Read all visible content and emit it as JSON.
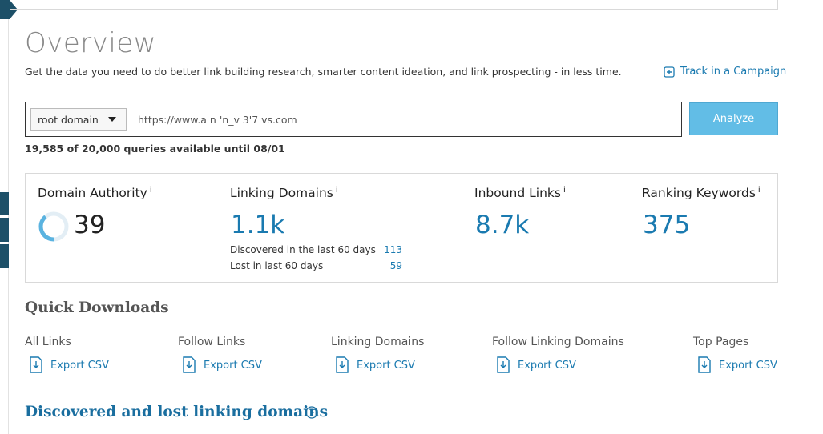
{
  "overview": {
    "title": "Overview",
    "description": "Get the data you need to do better link building research, smarter content ideation, and link prospecting - in less time.",
    "track_link": "Track in a Campaign"
  },
  "search": {
    "scope": "root domain",
    "url": "https://www.a n  'n_v  3'7  vs.com",
    "button": "Analyze",
    "quota": "19,585 of 20,000 queries available until 08/01"
  },
  "info_icon": "i",
  "metrics": [
    {
      "label": "Domain Authority",
      "value": 39
    },
    {
      "label": "Linking Domains",
      "value": "1.1k"
    },
    {
      "label": "Inbound Links",
      "value": "8.7k"
    },
    {
      "label": "Ranking Keywords",
      "value": "375"
    }
  ],
  "linking_details": [
    {
      "label": "Discovered in the last 60 days",
      "value": "113"
    },
    {
      "label": "Lost in last 60 days",
      "value": "59"
    }
  ],
  "quick_downloads": {
    "title": "Quick Downloads",
    "items": [
      {
        "label": "All Links",
        "action": "Export CSV"
      },
      {
        "label": "Follow Links",
        "action": "Export CSV"
      },
      {
        "label": "Linking Domains",
        "action": "Export CSV"
      },
      {
        "label": "Follow Linking Domains",
        "action": "Export CSV"
      },
      {
        "label": "Top Pages",
        "action": "Export CSV"
      }
    ]
  },
  "section_heading": "Discovered and lost linking domains"
}
